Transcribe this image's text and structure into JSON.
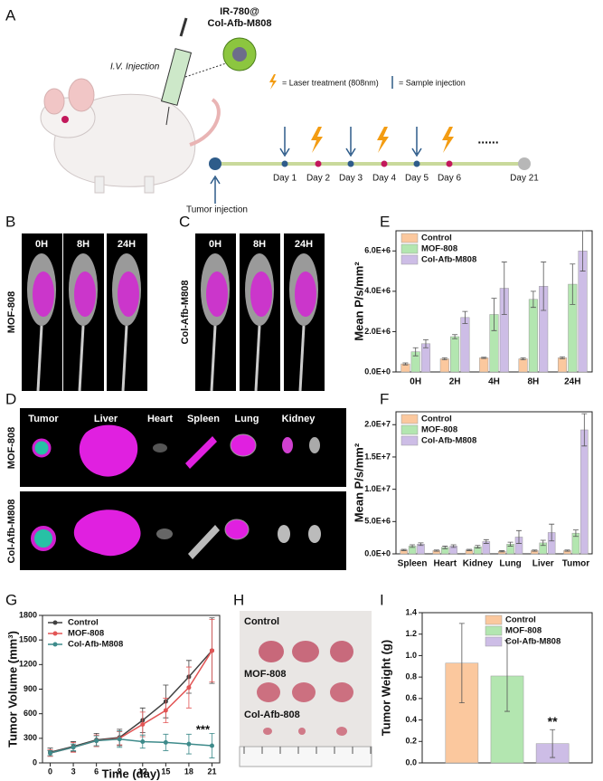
{
  "panels": [
    "A",
    "B",
    "C",
    "D",
    "E",
    "F",
    "G",
    "H",
    "I"
  ],
  "schematic": {
    "agent": [
      "IR-780@",
      "Col-Afb-M808"
    ],
    "injection": "I.V. Injection",
    "laser_legend": "= Laser treatment (808nm)",
    "sample_legend": "= Sample injection",
    "days": [
      "Day 1",
      "Day 2",
      "Day 3",
      "Day 4",
      "Day 5",
      "Day 6",
      "Day 21"
    ],
    "tumor_injection": "Tumor injection",
    "ellipsis": "......"
  },
  "imaging": {
    "times": [
      "0H",
      "8H",
      "24H"
    ],
    "groups": [
      "MOF-808",
      "Col-Afb-M808"
    ]
  },
  "organs": {
    "names": [
      "Tumor",
      "Liver",
      "Heart",
      "Spleen",
      "Lung",
      "Kidney"
    ],
    "groups": [
      "MOF-808",
      "Col-Afb-M808"
    ]
  },
  "tumors": {
    "groups": [
      "Control",
      "MOF-808",
      "Col-Afb-808"
    ]
  },
  "chart_data": [
    {
      "type": "bar",
      "y_label": "Mean P/s/mm²",
      "categories": [
        "0H",
        "2H",
        "4H",
        "8H",
        "24H"
      ],
      "series": [
        {
          "name": "Control",
          "color": "#fbc89e",
          "values": [
            400000,
            650000,
            700000,
            650000,
            700000
          ],
          "errors": [
            50000,
            50000,
            30000,
            50000,
            50000
          ]
        },
        {
          "name": "MOF-808",
          "color": "#b3e6b0",
          "values": [
            1000000,
            1750000,
            2850000,
            3600000,
            4350000
          ],
          "errors": [
            200000,
            100000,
            800000,
            400000,
            1000000
          ]
        },
        {
          "name": "Col-Afb-M808",
          "color": "#cdbde6",
          "values": [
            1400000,
            2700000,
            4150000,
            4250000,
            6000000
          ],
          "errors": [
            200000,
            300000,
            1300000,
            1200000,
            1000000
          ]
        }
      ],
      "ylim": [
        0,
        7000000
      ],
      "yticks": [
        {
          "value": 0,
          "label": "0.0E+0"
        },
        {
          "value": 2000000,
          "label": "2.0E+6"
        },
        {
          "value": 4000000,
          "label": "4.0E+6"
        },
        {
          "value": 6000000,
          "label": "6.0E+6"
        }
      ],
      "legend": "upper left"
    },
    {
      "type": "bar",
      "y_label": "Mean P/s/mm²",
      "categories": [
        "Spleen",
        "Heart",
        "Kidney",
        "Lung",
        "Liver",
        "Tumor"
      ],
      "series": [
        {
          "name": "Control",
          "color": "#fbc89e",
          "values": [
            600000,
            500000,
            600000,
            400000,
            500000,
            500000
          ],
          "errors": [
            100000,
            100000,
            100000,
            100000,
            100000,
            100000
          ]
        },
        {
          "name": "MOF-808",
          "color": "#b3e6b0",
          "values": [
            1200000,
            1000000,
            1100000,
            1500000,
            1700000,
            3200000
          ],
          "errors": [
            200000,
            200000,
            200000,
            300000,
            400000,
            500000
          ]
        },
        {
          "name": "Col-Afb-M808",
          "color": "#cdbde6",
          "values": [
            1500000,
            1200000,
            1900000,
            2600000,
            3300000,
            19200000
          ],
          "errors": [
            200000,
            200000,
            300000,
            1000000,
            1300000,
            2500000
          ]
        }
      ],
      "ylim": [
        0,
        22000000
      ],
      "yticks": [
        {
          "value": 0,
          "label": "0.0E+0"
        },
        {
          "value": 5000000,
          "label": "5.0E+6"
        },
        {
          "value": 10000000,
          "label": "1.0E+7"
        },
        {
          "value": 15000000,
          "label": "1.5E+7"
        },
        {
          "value": 20000000,
          "label": "2.0E+7"
        }
      ],
      "legend": "upper left"
    },
    {
      "type": "line",
      "x_label": "Time (day)",
      "y_label": "Tumor Volume (mm³)",
      "x": [
        0,
        3,
        6,
        9,
        12,
        15,
        18,
        21
      ],
      "series": [
        {
          "name": "Control",
          "color": "#404040",
          "values": [
            130,
            200,
            280,
            310,
            520,
            750,
            1050,
            1370
          ],
          "errors": [
            50,
            60,
            80,
            100,
            150,
            200,
            200,
            400
          ]
        },
        {
          "name": "MOF-808",
          "color": "#e25555",
          "values": [
            120,
            190,
            270,
            300,
            470,
            640,
            920,
            1370
          ],
          "errors": [
            40,
            60,
            70,
            80,
            150,
            150,
            250,
            380
          ]
        },
        {
          "name": "Col-Afb-M808",
          "color": "#3e8b8b",
          "values": [
            120,
            190,
            270,
            290,
            260,
            250,
            230,
            210
          ],
          "errors": [
            30,
            40,
            60,
            100,
            80,
            100,
            120,
            150
          ]
        }
      ],
      "xlim": [
        -1,
        22
      ],
      "xticks": [
        0,
        3,
        6,
        9,
        12,
        15,
        18,
        21
      ],
      "ylim": [
        0,
        1800
      ],
      "yticks": [
        0,
        300,
        600,
        900,
        1200,
        1500,
        1800
      ],
      "annotation": "***",
      "legend": "upper left"
    },
    {
      "type": "bar",
      "y_label": "Tumor Weight (g)",
      "categories": [
        null
      ],
      "series": [
        {
          "name": "Control",
          "color": "#fbc89e",
          "values": [
            0.93
          ],
          "errors": [
            0.37
          ]
        },
        {
          "name": "MOF-808",
          "color": "#b3e6b0",
          "values": [
            0.81
          ],
          "errors": [
            0.33
          ]
        },
        {
          "name": "Col-Afb-M808",
          "color": "#cdbde6",
          "values": [
            0.18
          ],
          "errors": [
            0.13
          ]
        }
      ],
      "ylim": [
        0,
        1.4
      ],
      "yticks": [
        {
          "value": 0,
          "label": "0.0"
        },
        {
          "value": 0.2,
          "label": "0.2"
        },
        {
          "value": 0.4,
          "label": "0.4"
        },
        {
          "value": 0.6,
          "label": "0.6"
        },
        {
          "value": 0.8,
          "label": "0.8"
        },
        {
          "value": 1,
          "label": "1.0"
        },
        {
          "value": 1.2,
          "label": "1.2"
        },
        {
          "value": 1.4,
          "label": "1.4"
        }
      ],
      "annotation": "**",
      "legend": "upper right"
    }
  ]
}
